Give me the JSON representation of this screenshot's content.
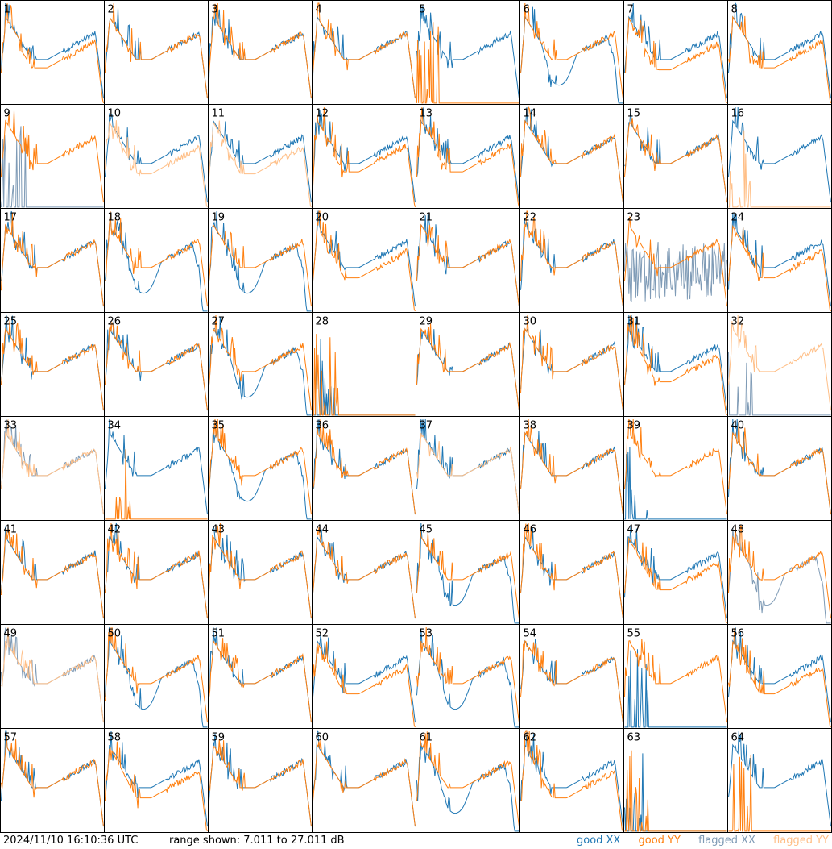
{
  "chart_data": {
    "type": "line",
    "title": "",
    "xlabel": "",
    "ylabel": "",
    "grid_rows": 8,
    "grid_cols": 8,
    "ylim_db": [
      7.011,
      27.011
    ],
    "colors": {
      "good_xx": "#1f77b4",
      "good_yy": "#ff7f0e",
      "flagged_xx": "#7f9bb6",
      "flagged_yy": "#ffbf87",
      "tile_border": "#000000"
    },
    "legend": {
      "placement": "bottom-right",
      "entries": [
        "good XX",
        "good YY",
        "flagged XX",
        "flagged YY"
      ]
    },
    "tiles": [
      {
        "id": "1",
        "xx": "good",
        "yy": "good",
        "pattern": "droopy"
      },
      {
        "id": "2",
        "xx": "good",
        "yy": "good",
        "pattern": "normal"
      },
      {
        "id": "3",
        "xx": "good",
        "yy": "good",
        "pattern": "normal"
      },
      {
        "id": "4",
        "xx": "good",
        "yy": "good",
        "pattern": "normal"
      },
      {
        "id": "5",
        "xx": "good",
        "yy": "good",
        "pattern": "yy_dead"
      },
      {
        "id": "6",
        "xx": "good",
        "yy": "good",
        "pattern": "xx_dip"
      },
      {
        "id": "7",
        "xx": "good",
        "yy": "good",
        "pattern": "split"
      },
      {
        "id": "8",
        "xx": "good",
        "yy": "good",
        "pattern": "droopy"
      },
      {
        "id": "9",
        "xx": "flagged",
        "yy": "good",
        "pattern": "xx_dead"
      },
      {
        "id": "10",
        "xx": "good",
        "yy": "flagged",
        "pattern": "split"
      },
      {
        "id": "11",
        "xx": "good",
        "yy": "flagged",
        "pattern": "split"
      },
      {
        "id": "12",
        "xx": "good",
        "yy": "good",
        "pattern": "droopy"
      },
      {
        "id": "13",
        "xx": "good",
        "yy": "good",
        "pattern": "droopy"
      },
      {
        "id": "14",
        "xx": "good",
        "yy": "good",
        "pattern": "normal"
      },
      {
        "id": "15",
        "xx": "good",
        "yy": "good",
        "pattern": "normal"
      },
      {
        "id": "16",
        "xx": "good",
        "yy": "flagged",
        "pattern": "yy_dead"
      },
      {
        "id": "17",
        "xx": "good",
        "yy": "good",
        "pattern": "normal"
      },
      {
        "id": "18",
        "xx": "good",
        "yy": "good",
        "pattern": "xx_dip"
      },
      {
        "id": "19",
        "xx": "good",
        "yy": "good",
        "pattern": "xx_dip"
      },
      {
        "id": "20",
        "xx": "good",
        "yy": "good",
        "pattern": "split"
      },
      {
        "id": "21",
        "xx": "good",
        "yy": "good",
        "pattern": "normal"
      },
      {
        "id": "22",
        "xx": "good",
        "yy": "good",
        "pattern": "normal"
      },
      {
        "id": "23",
        "xx": "flagged",
        "yy": "good",
        "pattern": "xx_noise"
      },
      {
        "id": "24",
        "xx": "good",
        "yy": "good",
        "pattern": "split"
      },
      {
        "id": "25",
        "xx": "good",
        "yy": "good",
        "pattern": "normal"
      },
      {
        "id": "26",
        "xx": "good",
        "yy": "good",
        "pattern": "normal"
      },
      {
        "id": "27",
        "xx": "good",
        "yy": "good",
        "pattern": "xx_dip"
      },
      {
        "id": "28",
        "xx": "good",
        "yy": "good",
        "pattern": "both_dead"
      },
      {
        "id": "29",
        "xx": "good",
        "yy": "good",
        "pattern": "normal"
      },
      {
        "id": "30",
        "xx": "good",
        "yy": "good",
        "pattern": "normal"
      },
      {
        "id": "31",
        "xx": "good",
        "yy": "good",
        "pattern": "split"
      },
      {
        "id": "32",
        "xx": "flagged",
        "yy": "flagged",
        "pattern": "xx_dead"
      },
      {
        "id": "33",
        "xx": "flagged",
        "yy": "flagged",
        "pattern": "normal"
      },
      {
        "id": "34",
        "xx": "good",
        "yy": "good",
        "pattern": "yy_dead"
      },
      {
        "id": "35",
        "xx": "good",
        "yy": "good",
        "pattern": "xx_dip"
      },
      {
        "id": "36",
        "xx": "good",
        "yy": "good",
        "pattern": "normal"
      },
      {
        "id": "37",
        "xx": "good",
        "yy": "flagged",
        "pattern": "normal"
      },
      {
        "id": "38",
        "xx": "good",
        "yy": "good",
        "pattern": "normal"
      },
      {
        "id": "39",
        "xx": "good",
        "yy": "good",
        "pattern": "xx_dead"
      },
      {
        "id": "40",
        "xx": "good",
        "yy": "good",
        "pattern": "normal"
      },
      {
        "id": "41",
        "xx": "good",
        "yy": "good",
        "pattern": "normal"
      },
      {
        "id": "42",
        "xx": "good",
        "yy": "good",
        "pattern": "normal"
      },
      {
        "id": "43",
        "xx": "good",
        "yy": "good",
        "pattern": "normal"
      },
      {
        "id": "44",
        "xx": "good",
        "yy": "good",
        "pattern": "normal"
      },
      {
        "id": "45",
        "xx": "good",
        "yy": "good",
        "pattern": "xx_dip"
      },
      {
        "id": "46",
        "xx": "good",
        "yy": "good",
        "pattern": "normal"
      },
      {
        "id": "47",
        "xx": "good",
        "yy": "good",
        "pattern": "split"
      },
      {
        "id": "48",
        "xx": "flagged",
        "yy": "good",
        "pattern": "xx_dip"
      },
      {
        "id": "49",
        "xx": "flagged",
        "yy": "flagged",
        "pattern": "normal"
      },
      {
        "id": "50",
        "xx": "good",
        "yy": "good",
        "pattern": "xx_dip"
      },
      {
        "id": "51",
        "xx": "good",
        "yy": "good",
        "pattern": "normal"
      },
      {
        "id": "52",
        "xx": "good",
        "yy": "good",
        "pattern": "split"
      },
      {
        "id": "53",
        "xx": "good",
        "yy": "good",
        "pattern": "xx_dip"
      },
      {
        "id": "54",
        "xx": "good",
        "yy": "good",
        "pattern": "normal"
      },
      {
        "id": "55",
        "xx": "good",
        "yy": "good",
        "pattern": "xx_dead"
      },
      {
        "id": "56",
        "xx": "good",
        "yy": "good",
        "pattern": "split"
      },
      {
        "id": "57",
        "xx": "good",
        "yy": "good",
        "pattern": "normal"
      },
      {
        "id": "58",
        "xx": "good",
        "yy": "good",
        "pattern": "split"
      },
      {
        "id": "59",
        "xx": "good",
        "yy": "good",
        "pattern": "normal"
      },
      {
        "id": "60",
        "xx": "good",
        "yy": "good",
        "pattern": "normal"
      },
      {
        "id": "61",
        "xx": "good",
        "yy": "good",
        "pattern": "xx_dip"
      },
      {
        "id": "62",
        "xx": "good",
        "yy": "good",
        "pattern": "split"
      },
      {
        "id": "63",
        "xx": "good",
        "yy": "good",
        "pattern": "both_dead"
      },
      {
        "id": "64",
        "xx": "good",
        "yy": "good",
        "pattern": "yy_dead"
      }
    ]
  },
  "footer": {
    "timestamp": "2024/11/10 16:10:36 UTC",
    "range_text": "range shown: 7.011 to 27.011 dB"
  },
  "legend_labels": {
    "good_xx": "good XX",
    "good_yy": "good YY",
    "flagged_xx": "flagged XX",
    "flagged_yy": "flagged YY"
  }
}
